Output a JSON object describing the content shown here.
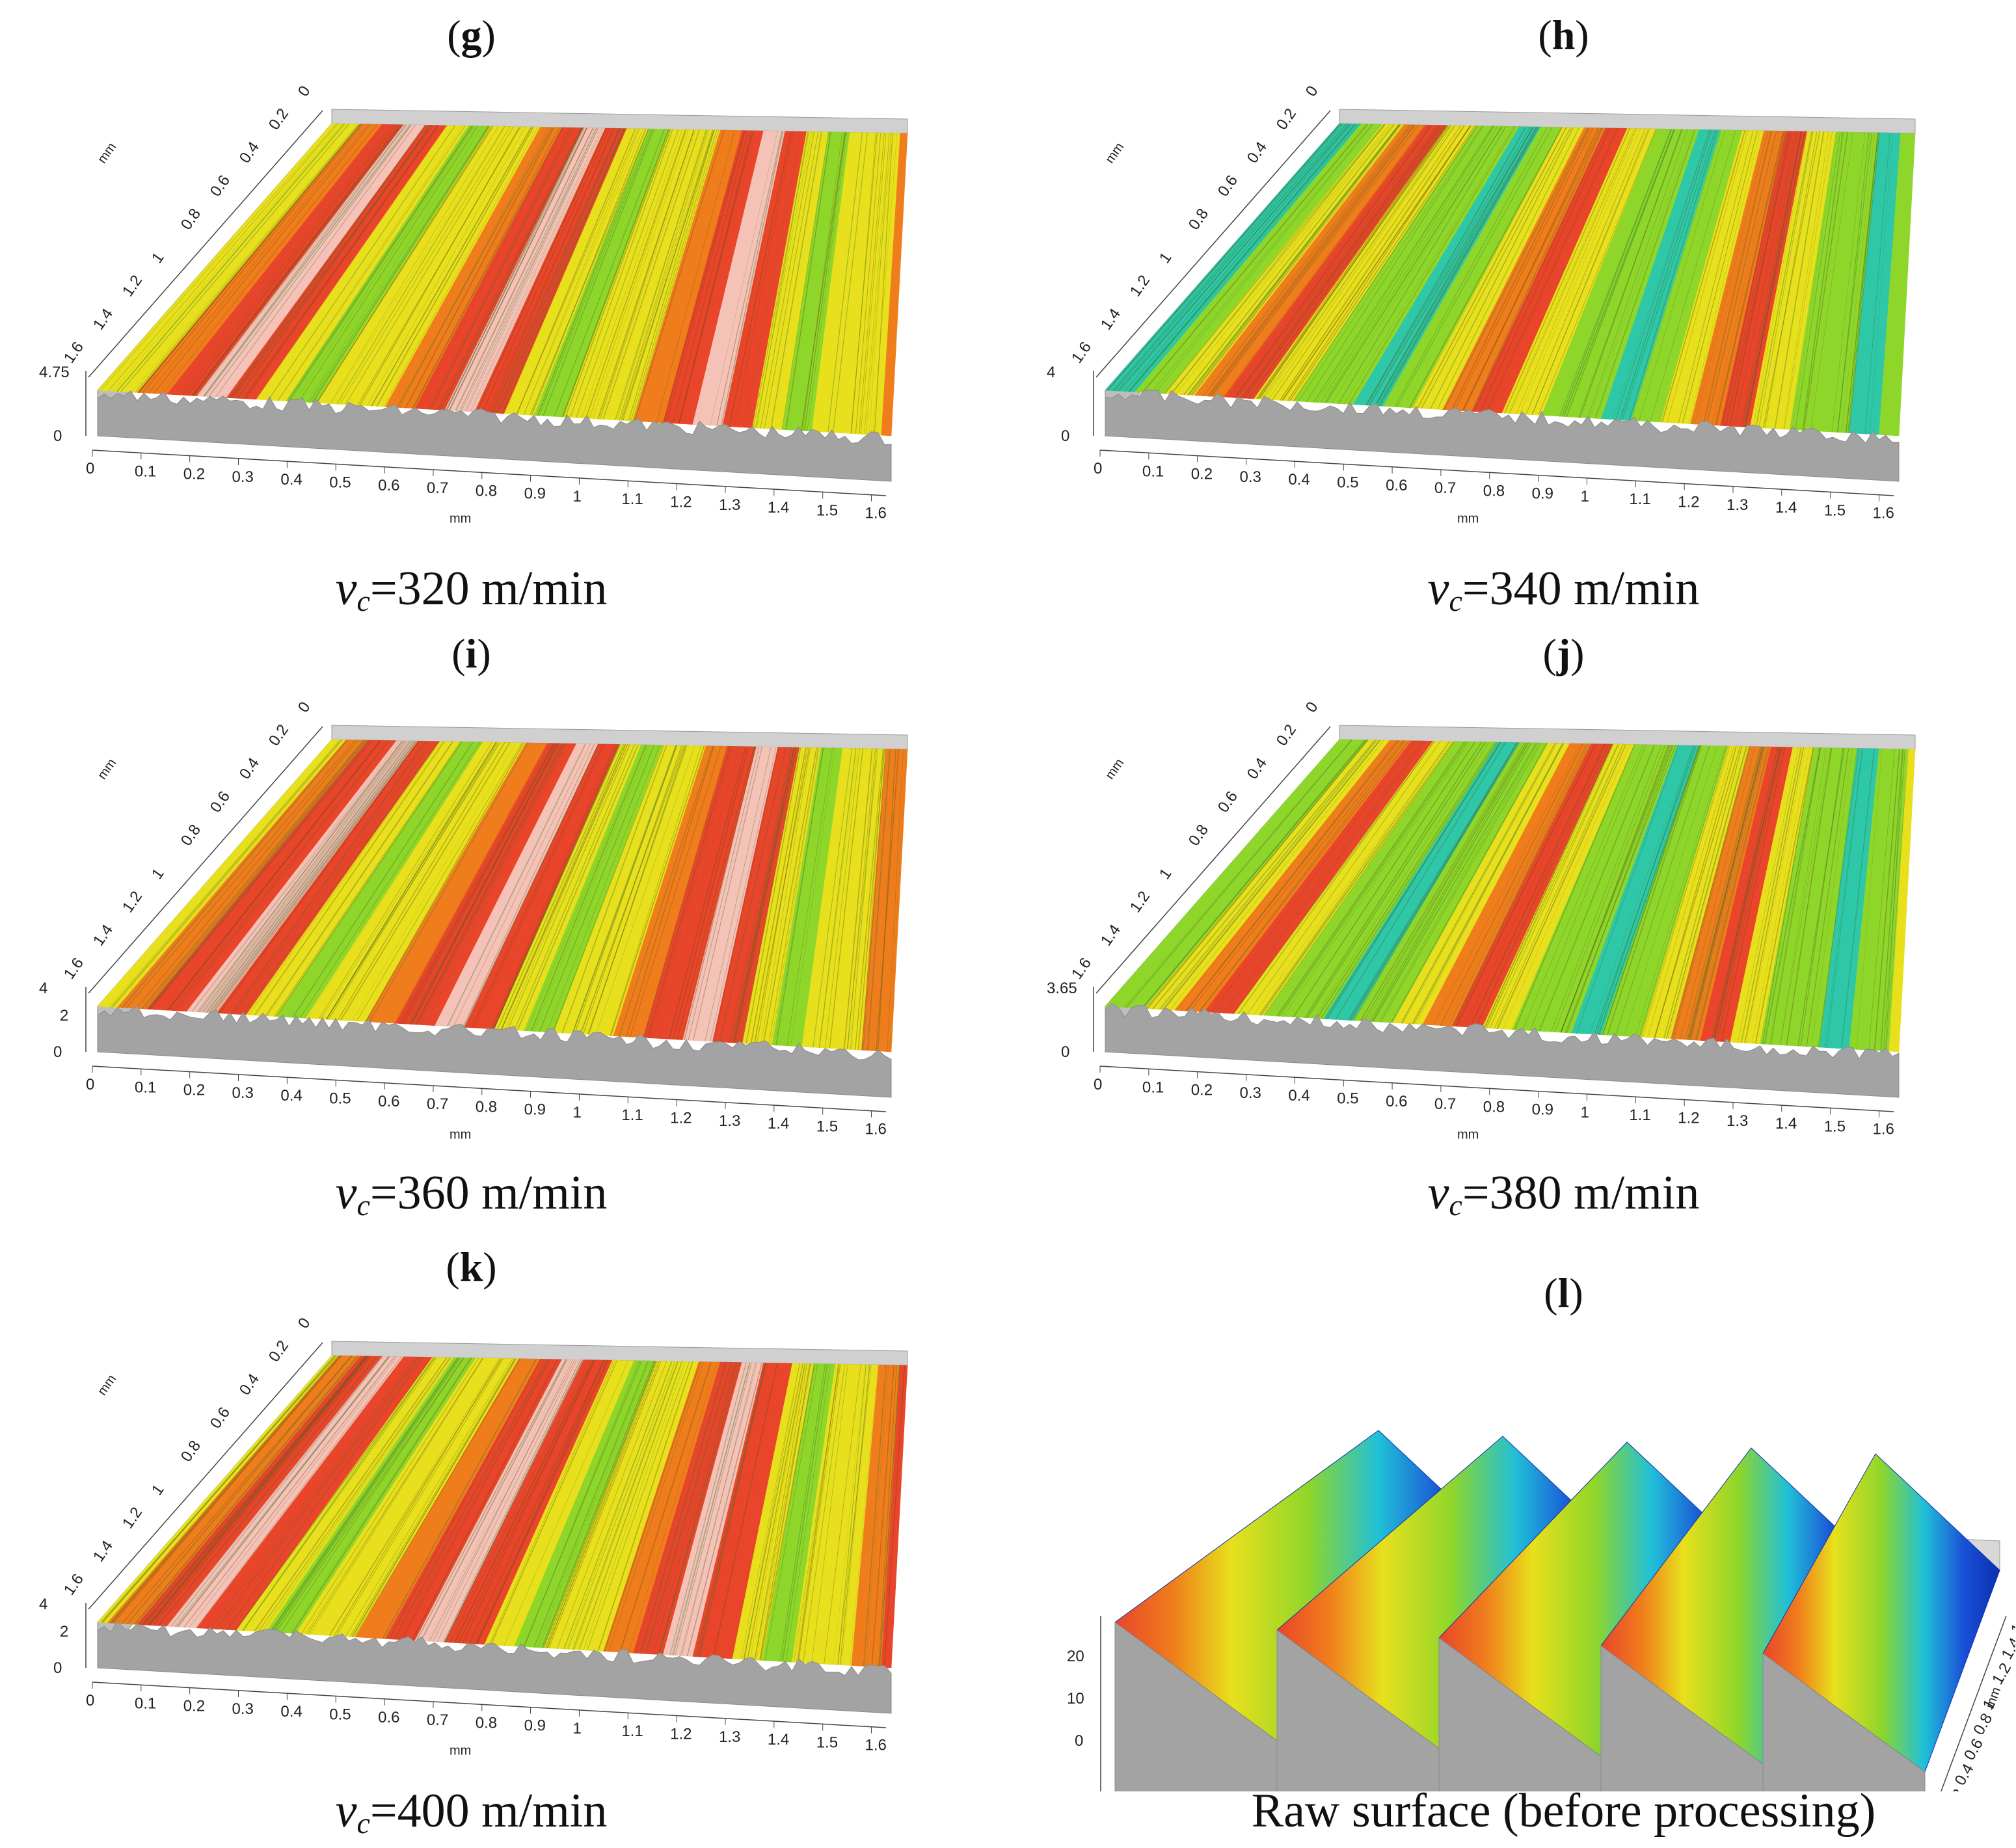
{
  "figure": {
    "panels": [
      {
        "id": "g",
        "label": "g",
        "speed": "320",
        "unit": " m/min",
        "z_top": "4.75",
        "z_ticks": [],
        "style": "warm",
        "stripe_offset": 0.0
      },
      {
        "id": "h",
        "label": "h",
        "speed": "340",
        "unit": " m/min",
        "z_top": "4",
        "z_ticks": [],
        "style": "green",
        "stripe_offset": 0.15
      },
      {
        "id": "i",
        "label": "i",
        "speed": "360",
        "unit": " m/min",
        "z_top": "4",
        "z_ticks": [
          "2"
        ],
        "style": "warm",
        "stripe_offset": 0.05
      },
      {
        "id": "j",
        "label": "j",
        "speed": "380",
        "unit": " m/min",
        "z_top": "3.65",
        "z_ticks": [],
        "style": "green",
        "stripe_offset": 0.25
      },
      {
        "id": "k",
        "label": "k",
        "speed": "400",
        "unit": " m/min",
        "z_top": "4",
        "z_ticks": [
          "2"
        ],
        "style": "warm",
        "stripe_offset": 0.1
      }
    ],
    "raw_panel": {
      "id": "l",
      "label": "l",
      "caption": "Raw surface (before processing)",
      "z_ticks": [
        "20",
        "10",
        "0"
      ]
    },
    "speed_symbol": "v",
    "speed_subscript": "c",
    "equals": "=",
    "x_ticks": [
      "0",
      "0.1",
      "0.2",
      "0.3",
      "0.4",
      "0.5",
      "0.6",
      "0.7",
      "0.8",
      "0.9",
      "1",
      "1.1",
      "1.2",
      "1.3",
      "1.4",
      "1.5",
      "1.6"
    ],
    "y_ticks": [
      "1.6",
      "1.4",
      "1.2",
      "1",
      "0.8",
      "0.6",
      "0.4",
      "0.2",
      "0"
    ],
    "axis_unit": "mm",
    "z_zero": "0",
    "colors": {
      "red": "#e8452a",
      "orange": "#f07d1c",
      "yellow": "#e8e01c",
      "green": "#8fd62a",
      "cyan": "#2ec8a8",
      "blue": "#1a4fd8",
      "gray": "#a3a3a3"
    }
  }
}
